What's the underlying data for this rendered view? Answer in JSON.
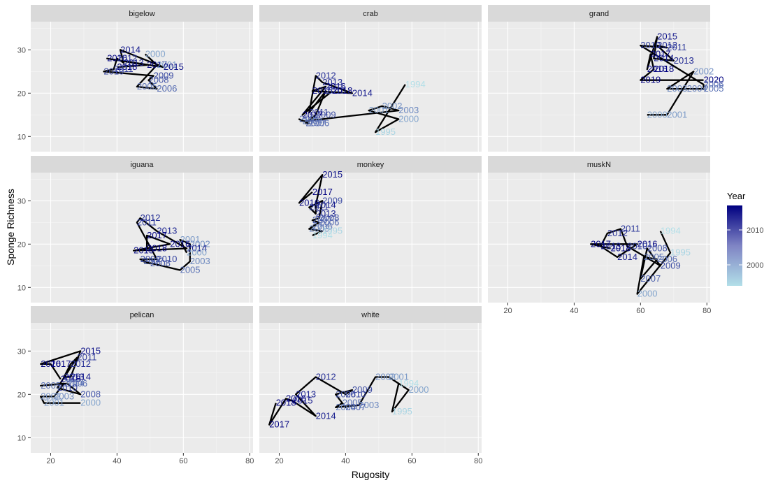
{
  "chart_data": {
    "type": "line",
    "xlabel": "Rugosity",
    "ylabel": "Sponge Richness",
    "xlim": [
      14,
      81
    ],
    "ylim": [
      6.5,
      36.5
    ],
    "x_ticks": [
      "20",
      "40",
      "60",
      "80"
    ],
    "y_ticks": [
      "10",
      "20",
      "30"
    ],
    "legend": {
      "title": "Year",
      "placement": "right",
      "ticks": [
        "2000",
        "2010"
      ],
      "color_low": "#b2dfe8",
      "color_high": "#000080",
      "year_min": 1994,
      "year_max": 2017
    },
    "panels": [
      {
        "name": "bigelow",
        "points": [
          {
            "year": "2000",
            "x": 48.5,
            "y": 29
          },
          {
            "year": "2014",
            "x": 41,
            "y": 30
          },
          {
            "year": "2016",
            "x": 37,
            "y": 28
          },
          {
            "year": "2012",
            "x": 40,
            "y": 28
          },
          {
            "year": "2013",
            "x": 42,
            "y": 27
          },
          {
            "year": "2017",
            "x": 49,
            "y": 26.5
          },
          {
            "year": "2001",
            "x": 52,
            "y": 26.5
          },
          {
            "year": "2015",
            "x": 54,
            "y": 26
          },
          {
            "year": "2018",
            "x": 40,
            "y": 26
          },
          {
            "year": "2011",
            "x": 39,
            "y": 25.5
          },
          {
            "year": "2010",
            "x": 36,
            "y": 25
          },
          {
            "year": "2009",
            "x": 51,
            "y": 24
          },
          {
            "year": "2008",
            "x": 49.5,
            "y": 23
          },
          {
            "year": "2005",
            "x": 46,
            "y": 21.5
          },
          {
            "year": "2006",
            "x": 52,
            "y": 21
          }
        ]
      },
      {
        "name": "crab",
        "points": [
          {
            "year": "1994",
            "x": 58,
            "y": 22
          },
          {
            "year": "2012",
            "x": 31,
            "y": 24
          },
          {
            "year": "2013",
            "x": 33,
            "y": 22.5
          },
          {
            "year": "2016",
            "x": 34,
            "y": 21.5
          },
          {
            "year": "2015",
            "x": 30,
            "y": 20.5
          },
          {
            "year": "2010",
            "x": 34,
            "y": 20.5
          },
          {
            "year": "2018",
            "x": 36,
            "y": 20.5
          },
          {
            "year": "2014",
            "x": 42,
            "y": 20
          },
          {
            "year": "2001",
            "x": 47,
            "y": 16
          },
          {
            "year": "2002",
            "x": 51,
            "y": 17
          },
          {
            "year": "2003",
            "x": 56,
            "y": 16
          },
          {
            "year": "2011",
            "x": 29,
            "y": 15.5
          },
          {
            "year": "2009",
            "x": 31,
            "y": 15
          },
          {
            "year": "2000",
            "x": 56,
            "y": 14
          },
          {
            "year": "2017",
            "x": 27,
            "y": 15
          },
          {
            "year": "2005",
            "x": 26,
            "y": 14
          },
          {
            "year": "2004",
            "x": 27,
            "y": 13.5
          },
          {
            "year": "2007",
            "x": 28,
            "y": 13
          },
          {
            "year": "2006",
            "x": 29,
            "y": 13
          },
          {
            "year": "1995",
            "x": 49,
            "y": 11
          }
        ]
      },
      {
        "name": "grand",
        "points": [
          {
            "year": "2015",
            "x": 65,
            "y": 33
          },
          {
            "year": "2010",
            "x": 60,
            "y": 31
          },
          {
            "year": "2012",
            "x": 65,
            "y": 31
          },
          {
            "year": "2011",
            "x": 68,
            "y": 30.5
          },
          {
            "year": "2017",
            "x": 63,
            "y": 29
          },
          {
            "year": "2014",
            "x": 64,
            "y": 28
          },
          {
            "year": "2013",
            "x": 70,
            "y": 27.5
          },
          {
            "year": "2016",
            "x": 62,
            "y": 25.5
          },
          {
            "year": "2018",
            "x": 64,
            "y": 25.5
          },
          {
            "year": "2002",
            "x": 76,
            "y": 25
          },
          {
            "year": "2019",
            "x": 60,
            "y": 23
          },
          {
            "year": "2020",
            "x": 79,
            "y": 23
          },
          {
            "year": "2003",
            "x": 68,
            "y": 21
          },
          {
            "year": "2004",
            "x": 74,
            "y": 21
          },
          {
            "year": "2005",
            "x": 79,
            "y": 21
          },
          {
            "year": "2006",
            "x": 79,
            "y": 22
          },
          {
            "year": "2000",
            "x": 62,
            "y": 15
          },
          {
            "year": "2001",
            "x": 68,
            "y": 15
          }
        ]
      },
      {
        "name": "iguana",
        "points": [
          {
            "year": "2012",
            "x": 47,
            "y": 26
          },
          {
            "year": "2011",
            "x": 46,
            "y": 25
          },
          {
            "year": "2013",
            "x": 52,
            "y": 23
          },
          {
            "year": "2017",
            "x": 49,
            "y": 22
          },
          {
            "year": "2001",
            "x": 59,
            "y": 21
          },
          {
            "year": "2002",
            "x": 62,
            "y": 20
          },
          {
            "year": "2016",
            "x": 56,
            "y": 20
          },
          {
            "year": "2014",
            "x": 61,
            "y": 19
          },
          {
            "year": "2000",
            "x": 61,
            "y": 18
          },
          {
            "year": "2015",
            "x": 45,
            "y": 18.5
          },
          {
            "year": "2018",
            "x": 49,
            "y": 19
          },
          {
            "year": "2009",
            "x": 47,
            "y": 16.5
          },
          {
            "year": "2010",
            "x": 52,
            "y": 16.5
          },
          {
            "year": "2007",
            "x": 48,
            "y": 16
          },
          {
            "year": "2008",
            "x": 50,
            "y": 15.5
          },
          {
            "year": "2003",
            "x": 62,
            "y": 16
          },
          {
            "year": "2005",
            "x": 59,
            "y": 14
          }
        ]
      },
      {
        "name": "monkey",
        "points": [
          {
            "year": "2015",
            "x": 33,
            "y": 36
          },
          {
            "year": "2017",
            "x": 30,
            "y": 32
          },
          {
            "year": "2009",
            "x": 33,
            "y": 30
          },
          {
            "year": "2016",
            "x": 26,
            "y": 29.5
          },
          {
            "year": "2014",
            "x": 31,
            "y": 29
          },
          {
            "year": "2011",
            "x": 29,
            "y": 28.5
          },
          {
            "year": "2013",
            "x": 31,
            "y": 27
          },
          {
            "year": "2008",
            "x": 32,
            "y": 26
          },
          {
            "year": "2007",
            "x": 30,
            "y": 25.5
          },
          {
            "year": "2006",
            "x": 32,
            "y": 25
          },
          {
            "year": "2005",
            "x": 30,
            "y": 24
          },
          {
            "year": "2003",
            "x": 29,
            "y": 23.5
          },
          {
            "year": "1995",
            "x": 33,
            "y": 23
          },
          {
            "year": "1994",
            "x": 30,
            "y": 22
          }
        ]
      },
      {
        "name": "muskN",
        "points": [
          {
            "year": "1994",
            "x": 66,
            "y": 23
          },
          {
            "year": "2011",
            "x": 54,
            "y": 23.5
          },
          {
            "year": "2012",
            "x": 50,
            "y": 22.5
          },
          {
            "year": "2017",
            "x": 45,
            "y": 20
          },
          {
            "year": "2013",
            "x": 48,
            "y": 19.5
          },
          {
            "year": "2016",
            "x": 59,
            "y": 20
          },
          {
            "year": "2018",
            "x": 51,
            "y": 19
          },
          {
            "year": "2010",
            "x": 56,
            "y": 19.5
          },
          {
            "year": "2008",
            "x": 62,
            "y": 19
          },
          {
            "year": "1995",
            "x": 69,
            "y": 18
          },
          {
            "year": "2014",
            "x": 53,
            "y": 17
          },
          {
            "year": "2005",
            "x": 61,
            "y": 17
          },
          {
            "year": "2006",
            "x": 65,
            "y": 16.5
          },
          {
            "year": "2009",
            "x": 66,
            "y": 15
          },
          {
            "year": "2007",
            "x": 60,
            "y": 12
          },
          {
            "year": "2000",
            "x": 59,
            "y": 8.5
          }
        ]
      },
      {
        "name": "pelican",
        "points": [
          {
            "year": "2015",
            "x": 29,
            "y": 30
          },
          {
            "year": "2011",
            "x": 28,
            "y": 28.5
          },
          {
            "year": "2016",
            "x": 17,
            "y": 27
          },
          {
            "year": "2017",
            "x": 20,
            "y": 27
          },
          {
            "year": "2012",
            "x": 26,
            "y": 27
          },
          {
            "year": "2013",
            "x": 24,
            "y": 24
          },
          {
            "year": "2018",
            "x": 23,
            "y": 23.5
          },
          {
            "year": "2014",
            "x": 26,
            "y": 24
          },
          {
            "year": "2004",
            "x": 24,
            "y": 22.5
          },
          {
            "year": "2006",
            "x": 25,
            "y": 22.5
          },
          {
            "year": "2005",
            "x": 17,
            "y": 22
          },
          {
            "year": "2010",
            "x": 22,
            "y": 21.5
          },
          {
            "year": "2008",
            "x": 29,
            "y": 20
          },
          {
            "year": "2002",
            "x": 17,
            "y": 19.5
          },
          {
            "year": "2003",
            "x": 21,
            "y": 19.5
          },
          {
            "year": "2001",
            "x": 18,
            "y": 18
          },
          {
            "year": "2000",
            "x": 29,
            "y": 18
          }
        ]
      },
      {
        "name": "white",
        "points": [
          {
            "year": "2012",
            "x": 31,
            "y": 24
          },
          {
            "year": "2002",
            "x": 49,
            "y": 24
          },
          {
            "year": "2001",
            "x": 53,
            "y": 24
          },
          {
            "year": "1994",
            "x": 56,
            "y": 22.5
          },
          {
            "year": "2000",
            "x": 59,
            "y": 21
          },
          {
            "year": "2009",
            "x": 42,
            "y": 21
          },
          {
            "year": "2013",
            "x": 25,
            "y": 20
          },
          {
            "year": "2008",
            "x": 37,
            "y": 20
          },
          {
            "year": "2010",
            "x": 40,
            "y": 20
          },
          {
            "year": "2016",
            "x": 22,
            "y": 19
          },
          {
            "year": "2015",
            "x": 24,
            "y": 18.5
          },
          {
            "year": "2018",
            "x": 19,
            "y": 18
          },
          {
            "year": "2005",
            "x": 39,
            "y": 18
          },
          {
            "year": "2003",
            "x": 44,
            "y": 17.5
          },
          {
            "year": "2004",
            "x": 37,
            "y": 17
          },
          {
            "year": "2007",
            "x": 40,
            "y": 17
          },
          {
            "year": "1995",
            "x": 54,
            "y": 16
          },
          {
            "year": "2014",
            "x": 31,
            "y": 15
          },
          {
            "year": "2017",
            "x": 17,
            "y": 13
          }
        ]
      }
    ]
  }
}
